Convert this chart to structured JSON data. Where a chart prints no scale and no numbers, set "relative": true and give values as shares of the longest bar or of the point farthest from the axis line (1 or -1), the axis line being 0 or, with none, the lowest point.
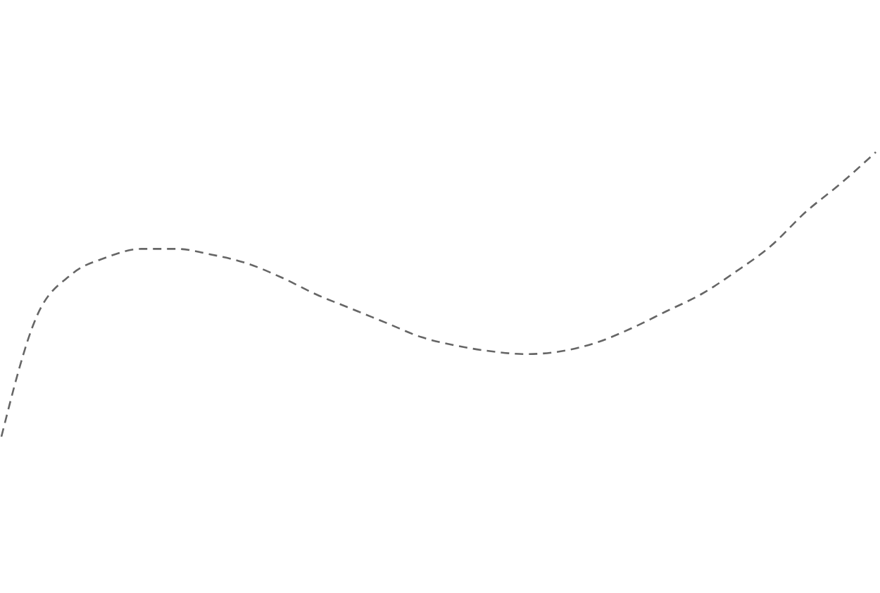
{
  "chart_data": {
    "type": "line",
    "relative": true,
    "line_style": "dashed",
    "marker": "none",
    "categories": [
      null,
      null,
      null,
      null,
      null,
      null,
      null,
      null,
      null,
      null,
      null,
      null,
      null,
      null,
      null,
      null,
      null,
      null,
      null,
      null,
      null,
      null,
      null,
      null,
      null,
      null
    ],
    "series": [
      {
        "color": "#666666",
        "values": [
          0,
          0.42,
          0.57,
          0.63,
          0.66,
          0.66,
          0.64,
          0.61,
          0.56,
          0.5,
          0.45,
          0.4,
          0.35,
          0.32,
          0.3,
          0.29,
          0.3,
          0.33,
          0.38,
          0.44,
          0.5,
          0.58,
          0.67,
          0.79,
          0.89,
          1
        ]
      }
    ]
  }
}
